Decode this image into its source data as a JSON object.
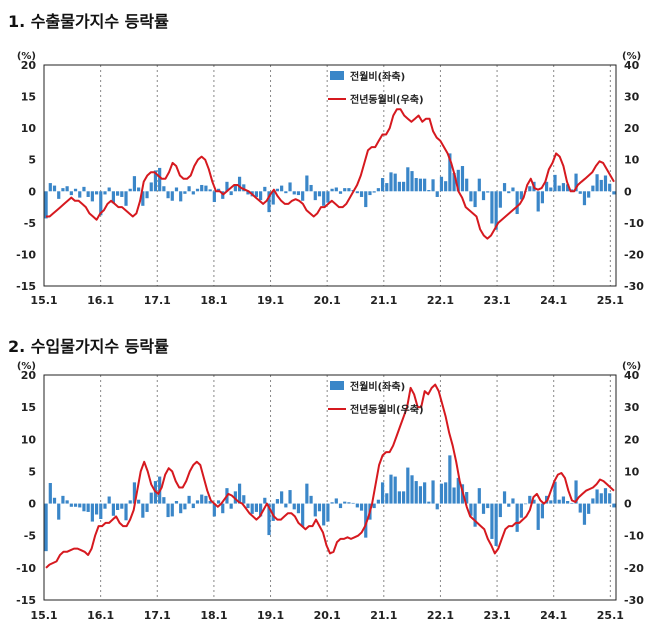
{
  "colors": {
    "bar": "#3a86c8",
    "line": "#d6191f",
    "grid": "#888888",
    "axis": "#222222"
  },
  "chart_data": [
    {
      "type": "bar+line",
      "title": "1. 수출물가지수 등락률",
      "left_unit": "(%)",
      "right_unit": "(%)",
      "ylim_left": [
        -15,
        20
      ],
      "ylim_right": [
        -30,
        40
      ],
      "left_ticks": [
        "20",
        "15",
        "10",
        "5",
        "0",
        "-5",
        "-10",
        "-15"
      ],
      "right_ticks": [
        "40",
        "30",
        "20",
        "10",
        "0",
        "-10",
        "-20",
        "-30"
      ],
      "x_ticks": [
        "15.1",
        "16.1",
        "17.1",
        "18.1",
        "19.1",
        "20.1",
        "21.1",
        "22.1",
        "23.1",
        "24.1",
        "25.1"
      ],
      "legend": {
        "bar": "전월비(좌축)",
        "line": "전년동월비(우축)"
      },
      "series": [
        {
          "name": "전월비(좌축)",
          "axis": "left",
          "kind": "bar",
          "values": [
            -4.3,
            1.3,
            0.9,
            -1.2,
            0.5,
            0.8,
            -0.6,
            0.4,
            -1.0,
            0.7,
            -0.9,
            -1.6,
            -0.5,
            -3.8,
            -0.5,
            0.6,
            -1.9,
            -0.7,
            -0.9,
            -2.3,
            0.4,
            2.4,
            0.6,
            -2.3,
            -1.1,
            1.4,
            3.3,
            3.7,
            0.8,
            -1.1,
            -1.5,
            0.6,
            -1.6,
            -0.4,
            0.8,
            -0.5,
            0.4,
            1.0,
            0.9,
            0.3,
            -1.7,
            0.4,
            -1.2,
            1.5,
            -0.6,
            1.1,
            2.3,
            1.1,
            -0.5,
            -0.8,
            -0.9,
            -1.4,
            0.7,
            -3.3,
            -2.1,
            0.4,
            0.9,
            -0.3,
            1.4,
            -0.5,
            -0.6,
            -1.5,
            2.5,
            1.0,
            -1.4,
            -0.8,
            -2.3,
            -1.8,
            0.4,
            0.6,
            -0.4,
            0.5,
            0.5,
            0.2,
            -0.3,
            -0.9,
            -2.5,
            -0.6,
            -0.2,
            0.5,
            2.1,
            1.3,
            3.0,
            2.8,
            1.5,
            1.5,
            3.8,
            3.2,
            2.1,
            2.0,
            2.0,
            0.2,
            1.9,
            -0.9,
            2.3,
            1.6,
            6.0,
            2.9,
            3.4,
            4.0,
            2.0,
            -1.6,
            -2.5,
            2.0,
            -1.4,
            -0.2,
            -5.1,
            -6.1,
            -2.6,
            1.3,
            -0.3,
            0.6,
            -3.6,
            -1.3,
            0.0,
            0.8,
            1.5,
            -3.2,
            -1.9,
            1.5,
            0.6,
            2.6,
            0.9,
            1.3,
            1.1,
            0.3,
            2.8,
            -0.4,
            -2.2,
            -1.0,
            0.9,
            2.7,
            1.8,
            2.5,
            1.2,
            -0.5
          ]
        },
        {
          "name": "전년동월비(우축)",
          "axis": "right",
          "kind": "line",
          "values": [
            -8.0,
            -8.0,
            -7.0,
            -6.0,
            -5.0,
            -4.0,
            -3.0,
            -2.0,
            -3.0,
            -3.0,
            -4.0,
            -5.0,
            -7.0,
            -8.0,
            -9.0,
            -7.0,
            -6.0,
            -4.0,
            -3.0,
            -4.0,
            -5.0,
            -5.0,
            -6.0,
            -7.0,
            -8.0,
            -7.0,
            -3.0,
            3.0,
            5.0,
            6.0,
            6.0,
            5.0,
            4.0,
            4.0,
            6.0,
            9.0,
            8.0,
            5.0,
            4.0,
            4.0,
            5.0,
            8.0,
            10.0,
            11.0,
            10.0,
            7.0,
            3.0,
            0.0,
            0.0,
            -1.0,
            0.0,
            1.0,
            2.0,
            2.0,
            1.0,
            0.5,
            0.0,
            -1.0,
            -2.0,
            -3.0,
            -4.0,
            -3.0,
            -1.0,
            0.5,
            -1.5,
            -3.0,
            -4.0,
            -4.0,
            -3.0,
            -2.5,
            -3.0,
            -4.0,
            -6.0,
            -7.0,
            -8.0,
            -7.0,
            -5.0,
            -5.0,
            -4.0,
            -3.0,
            -4.0,
            -5.0,
            -5.0,
            -4.0,
            -2.0,
            0.0,
            2.0,
            5.0,
            9.0,
            13.0,
            14.0,
            14.0,
            16.0,
            18.0,
            18.0,
            20.0,
            24.0,
            26.0,
            26.0,
            24.0,
            23.0,
            22.0,
            23.0,
            24.0,
            22.0,
            23.0,
            23.0,
            19.0,
            17.0,
            16.0,
            14.0,
            12.0,
            9.0,
            5.0,
            0.0,
            -2.0,
            -5.0,
            -6.0,
            -7.0,
            -8.0,
            -12.0,
            -14.0,
            -15.0,
            -14.0,
            -12.0,
            -10.0,
            -9.0,
            -8.0,
            -7.0,
            -6.0,
            -5.0,
            -4.0,
            -2.0,
            2.0,
            4.0,
            1.0,
            0.5,
            1.0,
            3.0,
            7.0,
            9.0,
            12.0,
            11.0,
            8.0,
            3.0,
            0.0,
            0.0,
            2.0,
            3.0,
            4.0,
            5.0,
            6.0,
            8.0,
            9.5,
            9.0,
            7.0,
            5.0,
            3.0
          ]
        }
      ]
    },
    {
      "type": "bar+line",
      "title": "2. 수입물가지수 등락률",
      "left_unit": "(%)",
      "right_unit": "(%)",
      "ylim_left": [
        -15,
        20
      ],
      "ylim_right": [
        -30,
        40
      ],
      "left_ticks": [
        "20",
        "15",
        "10",
        "5",
        "0",
        "-5",
        "-10",
        "-15"
      ],
      "right_ticks": [
        "40",
        "30",
        "20",
        "10",
        "0",
        "-10",
        "-20",
        "-30"
      ],
      "x_ticks": [
        "15.1",
        "16.1",
        "17.1",
        "18.1",
        "19.1",
        "20.1",
        "21.1",
        "22.1",
        "23.1",
        "24.1",
        "25.1"
      ],
      "legend": {
        "bar": "전월비(좌축)",
        "line": "전년동월비(우축)"
      },
      "series": [
        {
          "name": "전월비(좌축)",
          "axis": "left",
          "kind": "bar",
          "values": [
            -7.4,
            3.2,
            0.9,
            -2.5,
            1.2,
            0.5,
            -0.5,
            -0.5,
            -0.6,
            -1.2,
            -1.3,
            -2.8,
            -1.7,
            -2.4,
            -0.8,
            1.1,
            -1.9,
            -1.0,
            -0.8,
            -2.6,
            0.5,
            3.3,
            0.6,
            -2.2,
            -1.3,
            1.7,
            3.5,
            4.2,
            1.0,
            -2.1,
            -2.0,
            0.4,
            -1.5,
            -0.9,
            1.2,
            -0.7,
            0.5,
            1.4,
            1.2,
            0.4,
            -2.0,
            0.5,
            -1.5,
            2.4,
            -0.8,
            1.9,
            3.1,
            1.3,
            -0.7,
            -1.6,
            -1.3,
            -2.0,
            0.9,
            -4.9,
            -2.7,
            0.7,
            1.9,
            -0.6,
            2.1,
            -0.9,
            -1.5,
            -3.6,
            3.1,
            1.2,
            -2.0,
            -1.2,
            -3.4,
            -2.8,
            0.2,
            0.8,
            -0.7,
            0.3,
            0.2,
            0.1,
            -0.6,
            -1.1,
            -5.3,
            -2.5,
            -0.7,
            0.6,
            3.3,
            1.6,
            4.5,
            4.2,
            1.9,
            1.9,
            5.6,
            4.4,
            3.5,
            2.7,
            3.3,
            0.3,
            3.6,
            -0.9,
            3.1,
            3.3,
            7.5,
            2.5,
            4.0,
            3.0,
            1.8,
            -1.9,
            -3.6,
            2.4,
            -1.6,
            -0.7,
            -5.5,
            -6.6,
            -2.1,
            1.9,
            -0.5,
            0.8,
            -4.4,
            -2.2,
            -0.1,
            1.2,
            0.6,
            -4.1,
            -2.3,
            1.2,
            0.5,
            3.4,
            0.6,
            1.1,
            0.4,
            0.1,
            3.6,
            -1.4,
            -3.3,
            -1.6,
            0.8,
            2.2,
            1.6,
            2.4,
            1.6,
            -0.6
          ]
        },
        {
          "name": "전년동월비(우축)",
          "axis": "right",
          "kind": "line",
          "values": [
            -20.0,
            -19.0,
            -18.5,
            -18.0,
            -16.0,
            -15.0,
            -15.0,
            -14.5,
            -14.0,
            -14.0,
            -14.5,
            -15.0,
            -16.0,
            -14.0,
            -10.0,
            -7.0,
            -7.0,
            -6.0,
            -6.0,
            -5.0,
            -4.0,
            -6.0,
            -7.0,
            -7.0,
            -5.0,
            -2.0,
            4.0,
            10.0,
            13.0,
            10.0,
            6.0,
            4.0,
            3.0,
            5.0,
            9.0,
            11.0,
            10.0,
            7.0,
            5.0,
            5.0,
            7.0,
            10.0,
            12.0,
            13.0,
            12.0,
            8.0,
            4.0,
            1.0,
            0.0,
            -1.0,
            0.0,
            1.5,
            3.0,
            2.5,
            1.5,
            0.5,
            0.0,
            -1.5,
            -3.0,
            -4.0,
            -5.0,
            -4.0,
            -2.0,
            0.0,
            -2.0,
            -4.0,
            -5.0,
            -5.0,
            -4.0,
            -3.0,
            -3.0,
            -4.0,
            -6.0,
            -7.0,
            -8.0,
            -7.0,
            -7.0,
            -5.0,
            -7.0,
            -9.0,
            -13.0,
            -15.5,
            -15.0,
            -12.0,
            -11.0,
            -11.0,
            -10.5,
            -11.0,
            -10.5,
            -10.0,
            -9.0,
            -7.0,
            -4.0,
            0.0,
            6.0,
            12.0,
            15.0,
            16.0,
            16.0,
            18.0,
            21.0,
            24.0,
            27.0,
            30.0,
            36.0,
            34.0,
            30.0,
            30.0,
            35.0,
            34.0,
            36.0,
            37.0,
            35.0,
            31.0,
            27.0,
            22.0,
            18.0,
            13.0,
            7.0,
            3.0,
            -1.0,
            -4.0,
            -5.0,
            -6.0,
            -7.0,
            -8.0,
            -11.0,
            -13.0,
            -15.5,
            -14.0,
            -11.0,
            -8.0,
            -7.0,
            -7.0,
            -6.0,
            -6.0,
            -5.0,
            -4.0,
            -2.0,
            2.0,
            3.0,
            1.0,
            0.0,
            1.0,
            4.0,
            7.0,
            9.0,
            9.5,
            8.0,
            4.0,
            1.0,
            0.5,
            2.0,
            3.0,
            4.0,
            4.5,
            5.0,
            6.0,
            7.5,
            7.0,
            6.0,
            5.0,
            4.0
          ]
        }
      ]
    }
  ]
}
